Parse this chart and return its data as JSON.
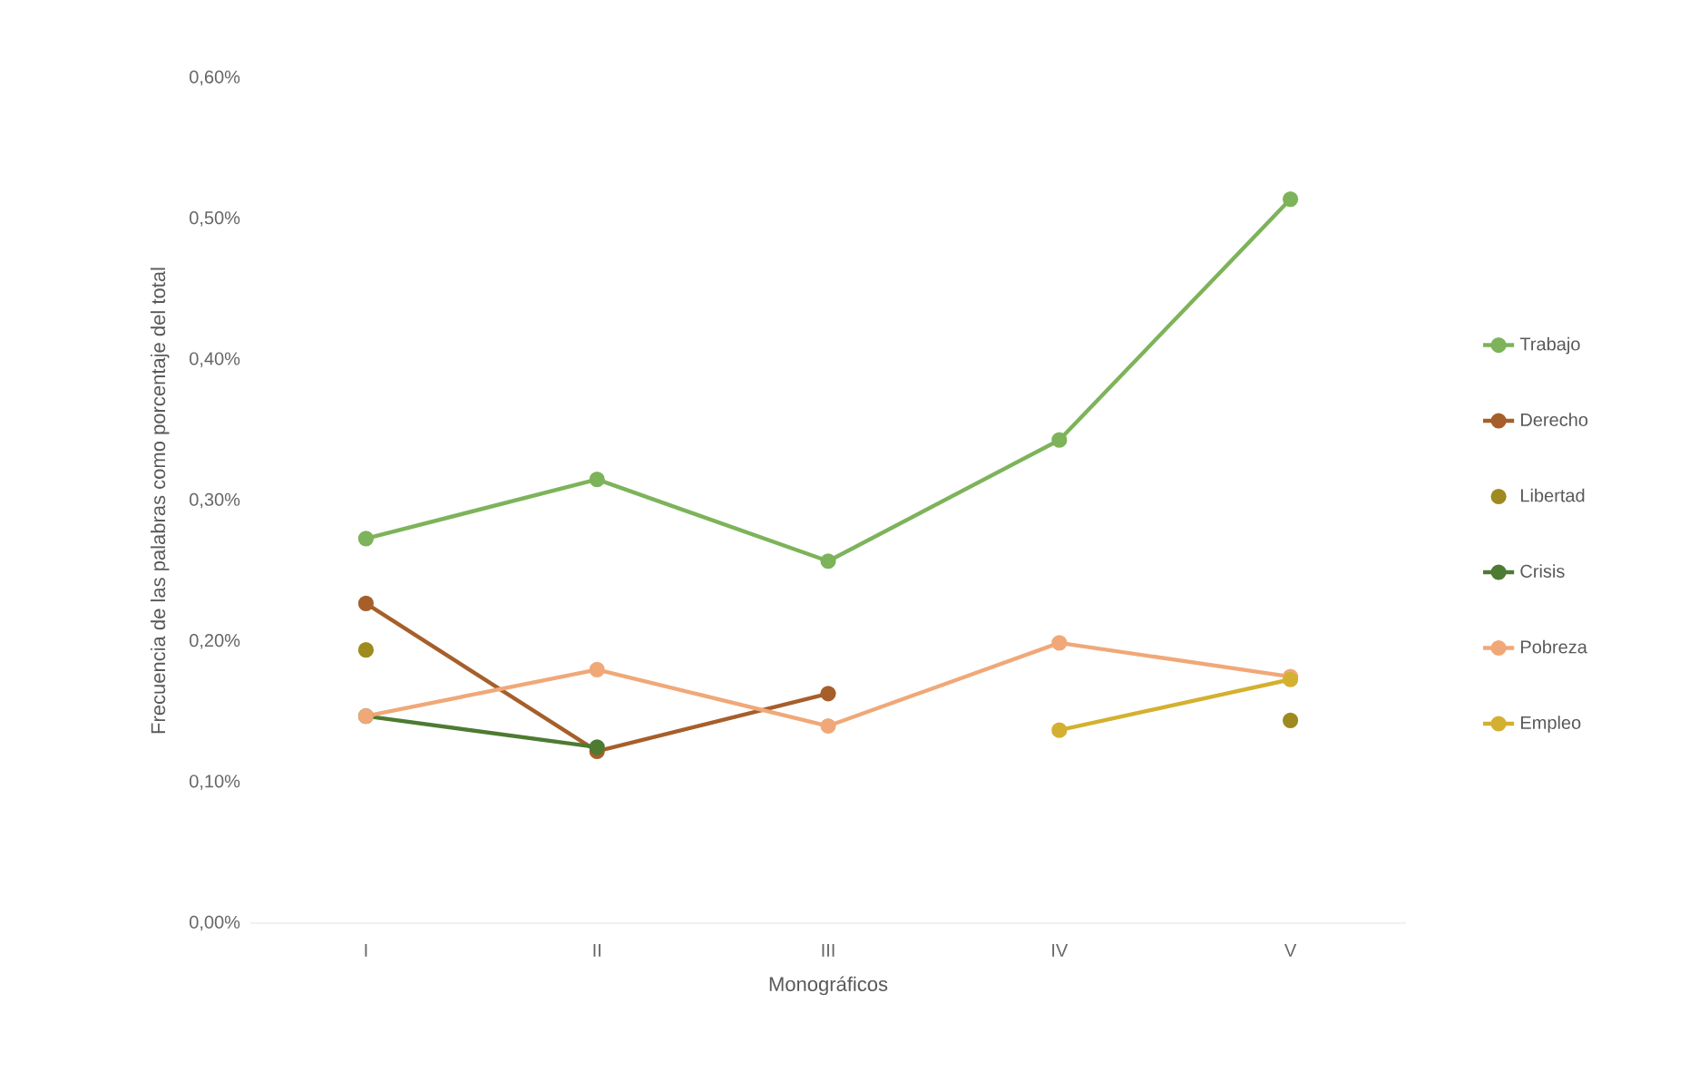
{
  "chart_data": {
    "type": "line",
    "xlabel": "Monográficos",
    "ylabel": "Frecuencia de las palabras como porcentaje del total",
    "categories": [
      "I",
      "II",
      "III",
      "IV",
      "V"
    ],
    "series": [
      {
        "name": "Trabajo",
        "color": "#7db35a",
        "values": [
          0.273,
          0.315,
          0.257,
          0.343,
          0.514
        ]
      },
      {
        "name": "Derecho",
        "color": "#a65f2a",
        "values": [
          0.227,
          0.122,
          0.163,
          null,
          null
        ]
      },
      {
        "name": "Libertad",
        "type": "scatter",
        "color": "#9e8a1e",
        "values": [
          0.194,
          null,
          null,
          null,
          0.144
        ]
      },
      {
        "name": "Crisis",
        "color": "#4e7a32",
        "values": [
          0.147,
          0.125,
          null,
          null,
          null
        ]
      },
      {
        "name": "Pobreza",
        "color": "#f0a878",
        "values": [
          0.147,
          0.18,
          0.14,
          0.199,
          0.175
        ]
      },
      {
        "name": "Empleo",
        "color": "#d4b030",
        "values": [
          null,
          null,
          null,
          0.137,
          0.173
        ]
      }
    ],
    "ylim": [
      0,
      0.6
    ],
    "yticks": [
      {
        "value": 0,
        "label": "0,00%"
      },
      {
        "value": 0.1,
        "label": "0,10%"
      },
      {
        "value": 0.2,
        "label": "0,20%"
      },
      {
        "value": 0.3,
        "label": "0,30%"
      },
      {
        "value": 0.4,
        "label": "0,40%"
      },
      {
        "value": 0.5,
        "label": "0,50%"
      },
      {
        "value": 0.6,
        "label": "0,60%"
      }
    ],
    "grid": false,
    "legend": "right",
    "marker": "circle",
    "line_style": "solid"
  }
}
